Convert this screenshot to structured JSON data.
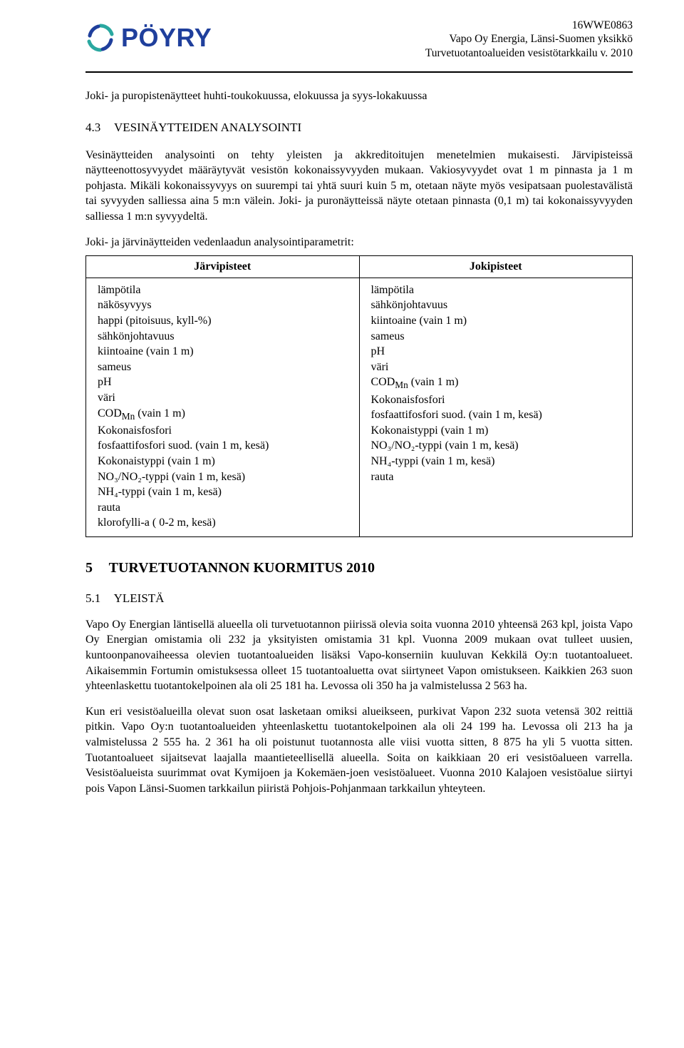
{
  "doc": {
    "logo_text": "PÖYRY",
    "header_lines": [
      "16WWE0863",
      "Vapo Oy Energia, Länsi-Suomen yksikkö",
      "Turvetuotantoalueiden vesistötarkkailu v. 2010"
    ],
    "intro_line": "Joki- ja puropistenäytteet huhti-toukokuussa, elokuussa ja syys-lokakuussa",
    "section43_num": "4.3",
    "section43_title": "VESINÄYTTEIDEN ANALYSOINTI",
    "section43_body": "Vesinäytteiden analysointi on tehty yleisten ja akkreditoitujen menetelmien mukaisesti. Järvipisteissä näytteenottosyvyydet määräytyvät vesistön kokonaissyvyyden mukaan. Vakiosyvyydet ovat 1 m pinnasta ja 1 m pohjasta. Mikäli kokonaissyvyys on suurempi tai yhtä suuri kuin 5 m, otetaan näyte myös vesipatsaan puolestavälistä tai syvyyden salliessa aina 5 m:n välein. Joki- ja puronäytteissä näyte otetaan pinnasta (0,1 m) tai kokonaissyvyyden salliessa 1 m:n syvyydeltä.",
    "param_intro": "Joki- ja järvinäytteiden vedenlaadun analysointiparametrit:",
    "table": {
      "col1_header": "Järvipisteet",
      "col2_header": "Jokipisteet",
      "col1_rows": [
        "lämpötila",
        "näkösyvyys",
        "happi (pitoisuus, kyll-%)",
        "sähkönjohtavuus",
        "kiintoaine (vain 1 m)",
        "sameus",
        "pH",
        "väri",
        "COD_Mn (vain 1 m)",
        "Kokonaisfosfori",
        "fosfaattifosfori suod. (vain 1 m, kesä)",
        "Kokonaistyppi (vain 1 m)",
        "NO₃/NO₂-typpi (vain 1 m, kesä)",
        "NH₄-typpi (vain 1 m, kesä)",
        "rauta",
        "klorofylli-a ( 0-2 m, kesä)"
      ],
      "col2_rows": [
        "lämpötila",
        "sähkönjohtavuus",
        "kiintoaine (vain 1 m)",
        "sameus",
        "pH",
        "väri",
        "COD_Mn (vain 1 m)",
        "Kokonaisfosfori",
        "fosfaattifosfori suod. (vain 1 m, kesä)",
        "Kokonaistyppi (vain 1 m)",
        "NO₃/NO₂-typpi (vain 1 m, kesä)",
        "NH₄-typpi (vain 1 m, kesä)",
        "rauta"
      ]
    },
    "chapter5_num": "5",
    "chapter5_title": "TURVETUOTANNON KUORMITUS 2010",
    "section51_num": "5.1",
    "section51_title": "YLEISTÄ",
    "section51_p1": "Vapo Oy Energian läntisellä alueella oli turvetuotannon piirissä olevia soita vuonna 2010 yhteensä 263 kpl, joista Vapo Oy Energian omistamia oli 232 ja yksityisten omistamia 31 kpl. Vuonna 2009 mukaan ovat tulleet uusien, kuntoonpanovaiheessa olevien tuotantoalueiden lisäksi Vapo-konserniin kuuluvan Kekkilä Oy:n tuotantoalueet. Aikaisemmin Fortumin omistuksessa olleet 15 tuotantoaluetta ovat siirtyneet Vapon omistukseen. Kaikkien 263 suon yhteenlaskettu tuotantokelpoinen ala oli 25 181 ha. Levossa oli 350 ha ja valmistelussa 2 563 ha.",
    "section51_p2": "Kun eri vesistöalueilla olevat suon osat lasketaan omiksi alueikseen, purkivat Vapon 232 suota vetensä 302 reittiä pitkin. Vapo Oy:n tuotantoalueiden yhteenlaskettu tuotantokelpoinen ala oli 24 199 ha. Levossa oli 213 ha ja valmistelussa 2 555 ha. 2 361 ha oli poistunut tuotannosta alle viisi vuotta sitten, 8 875 ha yli 5 vuotta sitten. Tuotantoalueet sijaitsevat laajalla maantieteellisellä alueella. Soita on kaikkiaan 20 eri vesistöalueen varrella. Vesistöalueista suurimmat ovat Kymijoen ja Kokemäen-joen vesistöalueet. Vuonna 2010 Kalajoen vesistöalue siirtyi pois Vapon Länsi-Suomen tarkkailun piiristä Pohjois-Pohjanmaan tarkkailun yhteyteen."
  },
  "style": {
    "brand_color": "#1f3f9c",
    "accent_color": "#2aa8a0"
  }
}
